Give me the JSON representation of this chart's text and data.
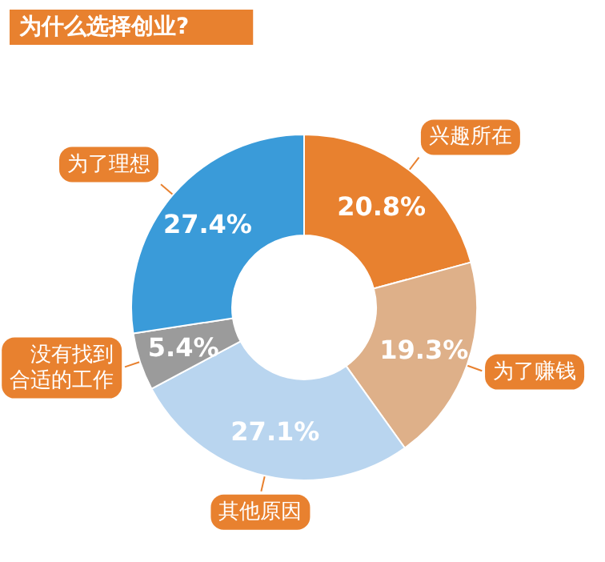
{
  "chart_data": {
    "type": "donut",
    "title": "为什么选择创业?",
    "categories": [
      "兴趣所在",
      "为了赚钱",
      "其他原因",
      "没有找到合适的工作",
      "为了理想"
    ],
    "values": [
      20.8,
      19.3,
      27.1,
      5.4,
      27.4
    ],
    "value_labels": [
      "20.8%",
      "19.3%",
      "27.1%",
      "5.4%",
      "27.4%"
    ],
    "colors": [
      "#e8812f",
      "#deb089",
      "#b9d5ef",
      "#9b9b9b",
      "#3a9bd9"
    ]
  }
}
